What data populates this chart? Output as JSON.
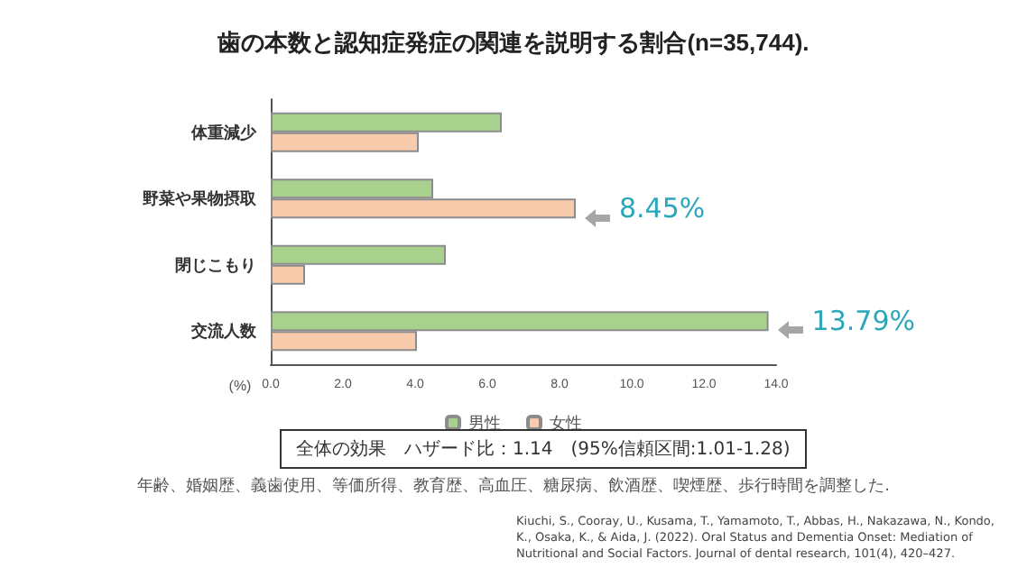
{
  "chart_data": {
    "type": "bar",
    "orientation": "horizontal",
    "title": "歯の本数と認知症発症の関連を説明する割合(n=35,744).",
    "xlabel": "(%)",
    "categories": [
      "体重減少",
      "野菜や果物摂取",
      "閉じこもり",
      "交流人数"
    ],
    "series": [
      {
        "name": "男性",
        "color": "#a9d18e",
        "values": [
          6.4,
          4.5,
          4.85,
          13.79
        ],
        "value_labels": [
          null,
          null,
          null,
          "13.79%"
        ]
      },
      {
        "name": "女性",
        "color": "#f8cbad",
        "values": [
          4.1,
          8.45,
          0.95,
          4.05
        ],
        "value_labels": [
          null,
          "8.45%",
          null,
          null
        ]
      }
    ],
    "xlim": [
      0,
      14
    ],
    "xticks": [
      {
        "value": 0,
        "label": "0.0"
      },
      {
        "value": 2,
        "label": "2.0"
      },
      {
        "value": 4,
        "label": "4.0"
      },
      {
        "value": 6,
        "label": "6.0"
      },
      {
        "value": 8,
        "label": "8.0"
      },
      {
        "value": 10,
        "label": "10.0"
      },
      {
        "value": 12,
        "label": "12.0"
      },
      {
        "value": 14,
        "label": "14.0"
      }
    ],
    "grid": false,
    "legend": "bottom",
    "annotations": [
      "全体の効果　ハザード比：1.14　(95%信頼区間:1.01-1.28)",
      "年齢、婚姻歴、義歯使用、等価所得、教育歴、高血圧、糖尿病、飲酒歴、喫煙歴、歩行時間を調整した.",
      "Kiuchi, S., Cooray, U., Kusama, T., Yamamoto, T., Abbas, H., Nakazawa, N., Kondo, K., Osaka, K., & Aida, J. (2022). Oral Status and Dementia Onset: Mediation of Nutritional and Social Factors. Journal of dental research, 101(4), 420–427."
    ]
  }
}
